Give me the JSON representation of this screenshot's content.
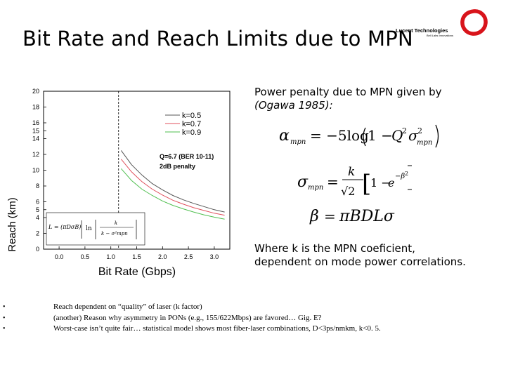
{
  "slide": {
    "title": "Bit Rate and Reach Limits due to MPN",
    "logo": {
      "name": "Lucent Technologies",
      "tagline": "Bell Labs Innovations"
    }
  },
  "chart_data": {
    "type": "line",
    "xlabel": "Bit Rate (Gbps)",
    "ylabel": "Reach (km)",
    "xlim": [
      -0.3,
      3.3
    ],
    "ylim": [
      0,
      20
    ],
    "x_ticks": [
      "0.0",
      "0.5",
      "1.0",
      "1.5",
      "2.0",
      "2.5",
      "3.0"
    ],
    "y_ticks": [
      "0",
      "2",
      "4",
      "5",
      "6",
      "8",
      "10",
      "12",
      "14",
      "15",
      "16",
      "18",
      "20"
    ],
    "series": [
      {
        "name": "k=0.5",
        "color": "#555555",
        "x": [
          1.2,
          1.4,
          1.6,
          1.8,
          2.0,
          2.2,
          2.4,
          2.6,
          2.8,
          3.0,
          3.2
        ],
        "y": [
          12.5,
          10.7,
          9.4,
          8.3,
          7.5,
          6.8,
          6.25,
          5.8,
          5.4,
          5.0,
          4.7
        ]
      },
      {
        "name": "k=0.7",
        "color": "#e0505c",
        "x": [
          1.2,
          1.4,
          1.6,
          1.8,
          2.0,
          2.2,
          2.4,
          2.6,
          2.8,
          3.0,
          3.2
        ],
        "y": [
          11.4,
          9.8,
          8.55,
          7.6,
          6.85,
          6.2,
          5.7,
          5.25,
          4.9,
          4.55,
          4.3
        ]
      },
      {
        "name": "k=0.9",
        "color": "#4fbf4f",
        "x": [
          1.2,
          1.4,
          1.6,
          1.8,
          2.0,
          2.2,
          2.4,
          2.6,
          2.8,
          3.0,
          3.2
        ],
        "y": [
          10.2,
          8.7,
          7.6,
          6.8,
          6.1,
          5.55,
          5.1,
          4.7,
          4.35,
          4.05,
          3.8
        ]
      }
    ],
    "annotations": [
      "Q=6.7 (BER 10-11)",
      "2dB penalty"
    ],
    "reference_line_x": 1.15,
    "grid": false,
    "legend_position": "top-right"
  },
  "notes": {
    "penalty_line1": "Power penalty due to MPN given by",
    "penalty_line2": "(Ogawa 1985):",
    "where_line1": "Where k is the MPN coeficient,",
    "where_line2": "dependent on mode power correlations."
  },
  "bullets": [
    "Reach dependent on “quality” of laser (k factor)",
    "(another) Reason why asymmetry in PONs (e.g., 155/622Mbps) are favored… Gig. E?",
    "Worst-case isn’t quite fair… statistical model shows most fiber-laser combinations, D<3ps/nmkm, k<0. 5."
  ],
  "bullet_marker": "•"
}
